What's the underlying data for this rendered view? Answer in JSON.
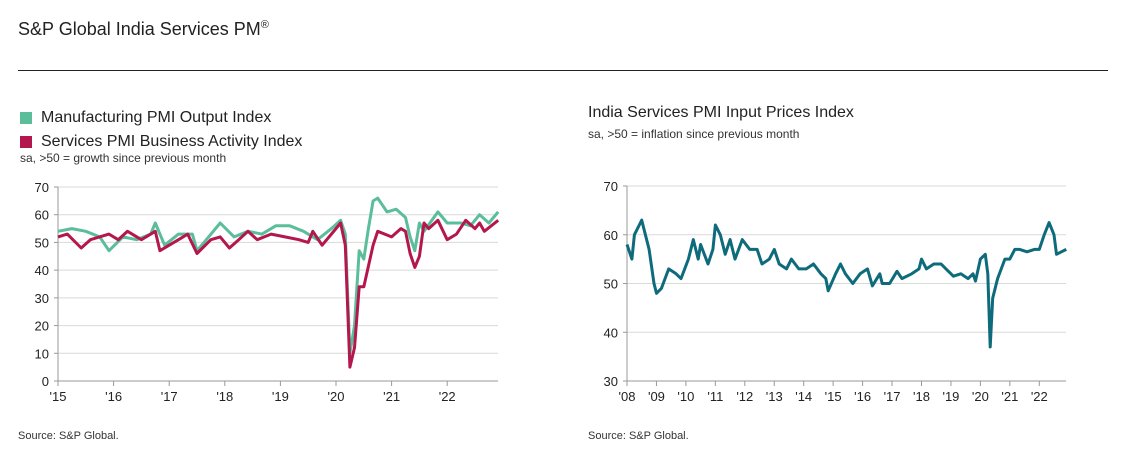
{
  "header": {
    "title": "S&P Global India Services PM",
    "title_sup": "®"
  },
  "chart_data": [
    {
      "type": "line",
      "legend": "top-left",
      "subtitle": "sa, >50 = growth since previous month",
      "source": "Source: S&P Global.",
      "ylim": [
        0,
        70
      ],
      "yticks": [
        "0",
        "10",
        "20",
        "30",
        "40",
        "50",
        "60",
        "70"
      ],
      "xticks": [
        "'15",
        "'16",
        "'17",
        "'18",
        "'19",
        "'20",
        "'21",
        "'22"
      ],
      "grid": true,
      "series": [
        {
          "name": "Manufacturing PMI Output Index",
          "color": "#5BBE9A",
          "points": [
            [
              "2015-01",
              54
            ],
            [
              "2015-04",
              55
            ],
            [
              "2015-07",
              54
            ],
            [
              "2015-10",
              52
            ],
            [
              "2015-12",
              47
            ],
            [
              "2016-03",
              52
            ],
            [
              "2016-06",
              51
            ],
            [
              "2016-09",
              53
            ],
            [
              "2016-10",
              57
            ],
            [
              "2016-12",
              49
            ],
            [
              "2017-03",
              53
            ],
            [
              "2017-06",
              53
            ],
            [
              "2017-07",
              47
            ],
            [
              "2017-09",
              51
            ],
            [
              "2017-12",
              57
            ],
            [
              "2018-03",
              52
            ],
            [
              "2018-06",
              54
            ],
            [
              "2018-09",
              53
            ],
            [
              "2018-12",
              56
            ],
            [
              "2019-03",
              56
            ],
            [
              "2019-06",
              54
            ],
            [
              "2019-09",
              51
            ],
            [
              "2019-12",
              55
            ],
            [
              "2020-02",
              58
            ],
            [
              "2020-03",
              53
            ],
            [
              "2020-04",
              10
            ],
            [
              "2020-05",
              20
            ],
            [
              "2020-06",
              47
            ],
            [
              "2020-07",
              44
            ],
            [
              "2020-08",
              55
            ],
            [
              "2020-09",
              65
            ],
            [
              "2020-10",
              66
            ],
            [
              "2020-12",
              61
            ],
            [
              "2021-02",
              62
            ],
            [
              "2021-04",
              59
            ],
            [
              "2021-05",
              52
            ],
            [
              "2021-06",
              47
            ],
            [
              "2021-07",
              57
            ],
            [
              "2021-08",
              54
            ],
            [
              "2021-11",
              61
            ],
            [
              "2022-01",
              57
            ],
            [
              "2022-04",
              57
            ],
            [
              "2022-06",
              56
            ],
            [
              "2022-08",
              60
            ],
            [
              "2022-10",
              57
            ],
            [
              "2022-12",
              61
            ]
          ]
        },
        {
          "name": "Services PMI Business Activity Index",
          "color": "#B3174E",
          "points": [
            [
              "2015-01",
              52
            ],
            [
              "2015-03",
              53
            ],
            [
              "2015-06",
              48
            ],
            [
              "2015-08",
              51
            ],
            [
              "2015-12",
              53
            ],
            [
              "2016-02",
              51
            ],
            [
              "2016-04",
              54
            ],
            [
              "2016-07",
              51
            ],
            [
              "2016-10",
              54
            ],
            [
              "2016-11",
              47
            ],
            [
              "2017-01",
              49
            ],
            [
              "2017-03",
              51
            ],
            [
              "2017-05",
              53
            ],
            [
              "2017-07",
              46
            ],
            [
              "2017-10",
              51
            ],
            [
              "2017-12",
              52
            ],
            [
              "2018-02",
              48
            ],
            [
              "2018-04",
              51
            ],
            [
              "2018-06",
              54
            ],
            [
              "2018-08",
              51
            ],
            [
              "2018-11",
              53
            ],
            [
              "2019-02",
              52
            ],
            [
              "2019-05",
              51
            ],
            [
              "2019-07",
              50
            ],
            [
              "2019-08",
              54
            ],
            [
              "2019-10",
              49
            ],
            [
              "2019-12",
              53
            ],
            [
              "2020-02",
              57
            ],
            [
              "2020-03",
              49
            ],
            [
              "2020-04",
              5
            ],
            [
              "2020-05",
              12
            ],
            [
              "2020-06",
              34
            ],
            [
              "2020-07",
              34
            ],
            [
              "2020-09",
              49
            ],
            [
              "2020-10",
              54
            ],
            [
              "2021-01",
              52
            ],
            [
              "2021-03",
              55
            ],
            [
              "2021-04",
              54
            ],
            [
              "2021-05",
              46
            ],
            [
              "2021-06",
              41
            ],
            [
              "2021-07",
              45
            ],
            [
              "2021-08",
              57
            ],
            [
              "2021-09",
              55
            ],
            [
              "2021-11",
              58
            ],
            [
              "2022-01",
              51
            ],
            [
              "2022-03",
              53
            ],
            [
              "2022-05",
              58
            ],
            [
              "2022-07",
              55
            ],
            [
              "2022-08",
              57
            ],
            [
              "2022-09",
              54
            ],
            [
              "2022-12",
              58
            ]
          ]
        }
      ]
    },
    {
      "type": "line",
      "title": "India Services PMI Input Prices Index",
      "subtitle": "sa, >50 = inflation since previous month",
      "source": "Source: S&P Global.",
      "ylim": [
        30,
        70
      ],
      "yticks": [
        "30",
        "40",
        "50",
        "60",
        "70"
      ],
      "xticks": [
        "'08",
        "'09",
        "'10",
        "'11",
        "'12",
        "'13",
        "'14",
        "'15",
        "'16",
        "'17",
        "'18",
        "'19",
        "'20",
        "'21",
        "'22"
      ],
      "grid": true,
      "series": [
        {
          "color": "#0E6B7C",
          "points": [
            [
              "2008-01",
              58
            ],
            [
              "2008-03",
              55
            ],
            [
              "2008-04",
              60
            ],
            [
              "2008-06",
              62
            ],
            [
              "2008-07",
              63
            ],
            [
              "2008-10",
              57
            ],
            [
              "2008-12",
              50
            ],
            [
              "2009-01",
              48
            ],
            [
              "2009-03",
              49
            ],
            [
              "2009-06",
              53
            ],
            [
              "2009-09",
              52
            ],
            [
              "2009-11",
              51
            ],
            [
              "2010-02",
              55
            ],
            [
              "2010-04",
              59
            ],
            [
              "2010-06",
              55
            ],
            [
              "2010-07",
              58
            ],
            [
              "2010-10",
              54
            ],
            [
              "2010-12",
              57
            ],
            [
              "2011-01",
              62
            ],
            [
              "2011-03",
              60
            ],
            [
              "2011-05",
              56
            ],
            [
              "2011-07",
              59
            ],
            [
              "2011-09",
              55
            ],
            [
              "2011-12",
              59
            ],
            [
              "2012-03",
              57
            ],
            [
              "2012-06",
              57
            ],
            [
              "2012-08",
              54
            ],
            [
              "2012-11",
              55
            ],
            [
              "2013-01",
              57
            ],
            [
              "2013-03",
              54
            ],
            [
              "2013-06",
              53
            ],
            [
              "2013-08",
              55
            ],
            [
              "2013-11",
              53
            ],
            [
              "2014-02",
              53
            ],
            [
              "2014-05",
              54
            ],
            [
              "2014-08",
              52
            ],
            [
              "2014-10",
              51
            ],
            [
              "2014-11",
              48.5
            ],
            [
              "2015-02",
              52
            ],
            [
              "2015-04",
              54
            ],
            [
              "2015-06",
              52
            ],
            [
              "2015-09",
              50
            ],
            [
              "2015-12",
              52
            ],
            [
              "2016-03",
              53
            ],
            [
              "2016-05",
              49.5
            ],
            [
              "2016-08",
              52
            ],
            [
              "2016-09",
              50
            ],
            [
              "2016-12",
              50
            ],
            [
              "2017-03",
              52.5
            ],
            [
              "2017-05",
              51
            ],
            [
              "2017-09",
              52
            ],
            [
              "2017-12",
              53
            ],
            [
              "2018-01",
              55
            ],
            [
              "2018-03",
              53
            ],
            [
              "2018-06",
              54
            ],
            [
              "2018-09",
              54
            ],
            [
              "2018-11",
              53
            ],
            [
              "2019-02",
              51.5
            ],
            [
              "2019-05",
              52
            ],
            [
              "2019-08",
              51
            ],
            [
              "2019-10",
              52
            ],
            [
              "2019-11",
              50.5
            ],
            [
              "2020-01",
              55
            ],
            [
              "2020-03",
              56
            ],
            [
              "2020-04",
              52
            ],
            [
              "2020-05",
              37
            ],
            [
              "2020-06",
              47
            ],
            [
              "2020-08",
              51
            ],
            [
              "2020-11",
              55
            ],
            [
              "2021-01",
              55
            ],
            [
              "2021-03",
              57
            ],
            [
              "2021-05",
              57
            ],
            [
              "2021-08",
              56.5
            ],
            [
              "2021-11",
              57
            ],
            [
              "2022-01",
              57
            ],
            [
              "2022-03",
              60
            ],
            [
              "2022-05",
              62.5
            ],
            [
              "2022-07",
              60
            ],
            [
              "2022-08",
              56
            ],
            [
              "2022-10",
              56.5
            ],
            [
              "2022-12",
              57
            ]
          ]
        }
      ]
    }
  ]
}
